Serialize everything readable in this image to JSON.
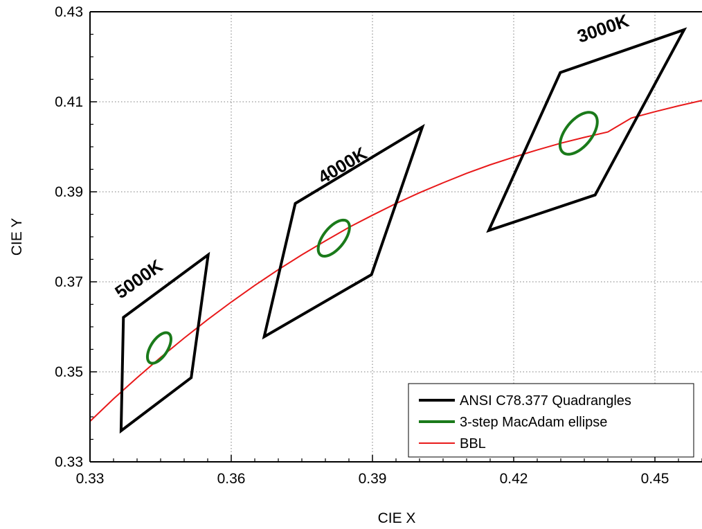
{
  "chart_data": {
    "type": "line",
    "xlabel": "CIE X",
    "ylabel": "CIE Y",
    "xlim": [
      0.33,
      0.46
    ],
    "ylim": [
      0.33,
      0.43
    ],
    "x_ticks": [
      "0.33",
      "0.36",
      "0.39",
      "0.42",
      "0.45"
    ],
    "y_ticks": [
      "0.33",
      "0.35",
      "0.37",
      "0.39",
      "0.41",
      "0.43"
    ],
    "grid": true,
    "legend_position": "bottom-right",
    "legend": [
      {
        "label": "ANSI C78.377 Quadrangles",
        "color": "#000000"
      },
      {
        "label": "3-step MacAdam ellipse",
        "color": "#1a7a1a"
      },
      {
        "label": "BBL",
        "color": "#e8191a"
      }
    ],
    "quadrangles": [
      {
        "label": "5000K",
        "points": [
          [
            0.3371,
            0.3621
          ],
          [
            0.3551,
            0.376
          ],
          [
            0.3515,
            0.3487
          ],
          [
            0.3366,
            0.3369
          ]
        ]
      },
      {
        "label": "4000K",
        "points": [
          [
            0.3736,
            0.3874
          ],
          [
            0.4006,
            0.4044
          ],
          [
            0.3898,
            0.3716
          ],
          [
            0.367,
            0.3578
          ]
        ]
      },
      {
        "label": "3000K",
        "points": [
          [
            0.4299,
            0.4165
          ],
          [
            0.4562,
            0.426
          ],
          [
            0.4373,
            0.3893
          ],
          [
            0.4147,
            0.3814
          ]
        ]
      }
    ],
    "ellipses": [
      {
        "center": [
          0.3447,
          0.3553
        ],
        "a": 0.00381,
        "b": 0.00182,
        "angle_deg": 59.1
      },
      {
        "center": [
          0.3818,
          0.3797
        ],
        "a": 0.00469,
        "b": 0.00227,
        "angle_deg": 53.7
      },
      {
        "center": [
          0.4338,
          0.403
        ],
        "a": 0.00541,
        "b": 0.00285,
        "angle_deg": 53.2
      }
    ],
    "bbl": {
      "x": [
        0.33,
        0.335,
        0.34,
        0.345,
        0.35,
        0.355,
        0.36,
        0.365,
        0.37,
        0.375,
        0.38,
        0.385,
        0.39,
        0.395,
        0.4,
        0.405,
        0.41,
        0.415,
        0.42,
        0.425,
        0.43,
        0.435,
        0.44,
        0.445,
        0.45,
        0.455,
        0.46
      ],
      "y": [
        0.339,
        0.344,
        0.3487,
        0.3532,
        0.3575,
        0.3616,
        0.3655,
        0.3692,
        0.3727,
        0.376,
        0.3791,
        0.3821,
        0.3848,
        0.3874,
        0.3898,
        0.392,
        0.3941,
        0.396,
        0.3977,
        0.3993,
        0.4008,
        0.4021,
        0.4033,
        0.4064,
        0.4078,
        0.4091,
        0.4103
      ]
    },
    "cct_labels": [
      {
        "text": "5000K",
        "x": 0.3411,
        "y": 0.3695,
        "angle": -35
      },
      {
        "text": "4000K",
        "x": 0.3843,
        "y": 0.3947,
        "angle": -31
      },
      {
        "text": "3000K",
        "x": 0.4394,
        "y": 0.425,
        "angle": -19
      }
    ]
  }
}
